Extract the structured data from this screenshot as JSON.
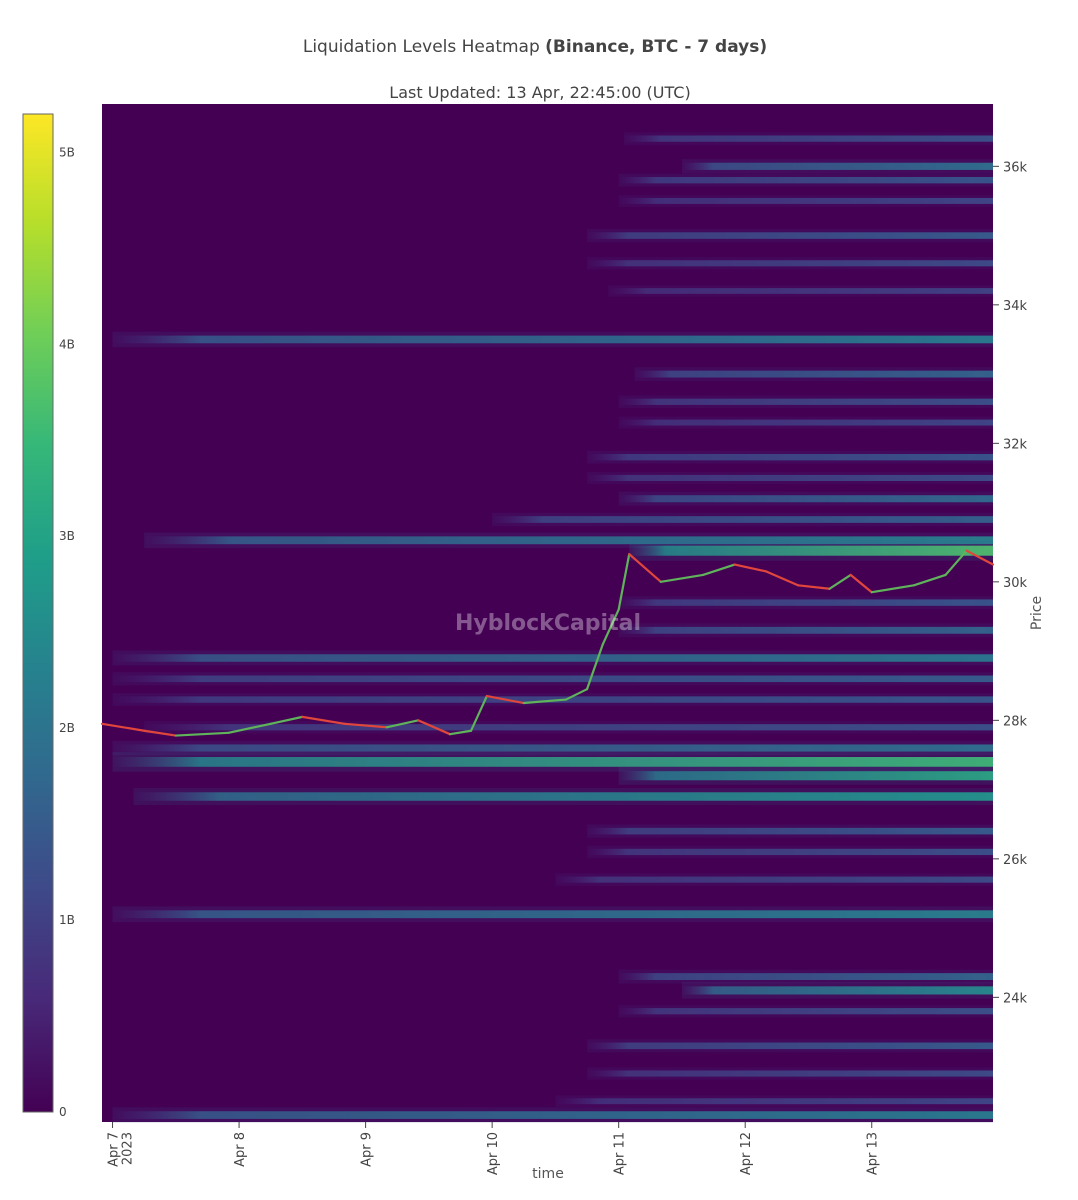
{
  "chart_data": {
    "type": "heatmap",
    "title_main": "Liquidation Levels Heatmap",
    "title_bold": "(Binance, BTC - 7 days)",
    "subtitle": "Last Updated: 13 Apr, 22:45:00 (UTC)",
    "watermark": "HyblockCapital",
    "xlabel": "time",
    "ylabel": "Price",
    "x_range": [
      "2023-04-06T22:00",
      "2023-04-13T23:00"
    ],
    "x_ticks": [
      {
        "date": "2023-04-07",
        "label": "Apr 7",
        "sublabel": "2023"
      },
      {
        "date": "2023-04-08",
        "label": "Apr 8"
      },
      {
        "date": "2023-04-09",
        "label": "Apr 9"
      },
      {
        "date": "2023-04-10",
        "label": "Apr 10"
      },
      {
        "date": "2023-04-11",
        "label": "Apr 11"
      },
      {
        "date": "2023-04-12",
        "label": "Apr 12"
      },
      {
        "date": "2023-04-13",
        "label": "Apr 13"
      }
    ],
    "y_range": [
      22200,
      36900
    ],
    "y_ticks": [
      {
        "value": 24000,
        "label": "24k"
      },
      {
        "value": 26000,
        "label": "26k"
      },
      {
        "value": 28000,
        "label": "28k"
      },
      {
        "value": 30000,
        "label": "30k"
      },
      {
        "value": 32000,
        "label": "32k"
      },
      {
        "value": 34000,
        "label": "34k"
      },
      {
        "value": 36000,
        "label": "36k"
      }
    ],
    "colorscale": [
      "#440154",
      "#482878",
      "#3e4989",
      "#31688e",
      "#26828e",
      "#1f9e89",
      "#35b779",
      "#6ece58",
      "#b5de2b",
      "#fde725"
    ],
    "colorbar_range": [
      0,
      5.2
    ],
    "colorbar_ticks": [
      {
        "value": 0,
        "label": "0"
      },
      {
        "value": 1,
        "label": "1B"
      },
      {
        "value": 2,
        "label": "2B"
      },
      {
        "value": 3,
        "label": "3B"
      },
      {
        "value": 4,
        "label": "4B"
      },
      {
        "value": 5,
        "label": "5B"
      }
    ],
    "liquidation_levels": [
      {
        "price": 36400,
        "start": "2023-04-11T01:00",
        "value": 1.4
      },
      {
        "price": 36000,
        "start": "2023-04-11T12:00",
        "value": 2.0
      },
      {
        "price": 35800,
        "start": "2023-04-11T00:00",
        "value": 1.5
      },
      {
        "price": 35500,
        "start": "2023-04-11T00:00",
        "value": 1.2
      },
      {
        "price": 35000,
        "start": "2023-04-10T18:00",
        "value": 1.6
      },
      {
        "price": 34600,
        "start": "2023-04-10T18:00",
        "value": 1.3
      },
      {
        "price": 34200,
        "start": "2023-04-10T22:00",
        "value": 1.1
      },
      {
        "price": 33500,
        "start": "2023-04-07T00:00",
        "value": 2.3
      },
      {
        "price": 33000,
        "start": "2023-04-11T03:00",
        "value": 1.8
      },
      {
        "price": 32600,
        "start": "2023-04-11T00:00",
        "value": 1.4
      },
      {
        "price": 32300,
        "start": "2023-04-11T00:00",
        "value": 1.2
      },
      {
        "price": 31800,
        "start": "2023-04-10T18:00",
        "value": 1.5
      },
      {
        "price": 31500,
        "start": "2023-04-10T18:00",
        "value": 1.3
      },
      {
        "price": 31200,
        "start": "2023-04-11T00:00",
        "value": 1.9
      },
      {
        "price": 30900,
        "start": "2023-04-10T00:00",
        "value": 1.7
      },
      {
        "price": 30600,
        "start": "2023-04-07T06:00",
        "value": 2.4
      },
      {
        "price": 30450,
        "start": "2023-04-11T02:00",
        "value": 3.8
      },
      {
        "price": 29700,
        "start": "2023-04-11T00:00",
        "value": 1.5
      },
      {
        "price": 29300,
        "start": "2023-04-11T00:00",
        "value": 1.8
      },
      {
        "price": 28900,
        "start": "2023-04-07T00:00",
        "value": 2.2
      },
      {
        "price": 28600,
        "start": "2023-04-07T00:00",
        "value": 1.6
      },
      {
        "price": 28300,
        "start": "2023-04-07T00:00",
        "value": 1.5
      },
      {
        "price": 27900,
        "start": "2023-04-07T06:00",
        "value": 1.4
      },
      {
        "price": 27600,
        "start": "2023-04-07T00:00",
        "value": 2.0
      },
      {
        "price": 27400,
        "start": "2023-04-07T00:00",
        "value": 3.6
      },
      {
        "price": 27200,
        "start": "2023-04-11T00:00",
        "value": 3.2
      },
      {
        "price": 26900,
        "start": "2023-04-07T04:00",
        "value": 2.8
      },
      {
        "price": 26400,
        "start": "2023-04-10T18:00",
        "value": 1.6
      },
      {
        "price": 26100,
        "start": "2023-04-10T18:00",
        "value": 1.4
      },
      {
        "price": 25700,
        "start": "2023-04-10T12:00",
        "value": 1.3
      },
      {
        "price": 25200,
        "start": "2023-04-07T00:00",
        "value": 2.4
      },
      {
        "price": 24300,
        "start": "2023-04-11T00:00",
        "value": 1.8
      },
      {
        "price": 24100,
        "start": "2023-04-11T12:00",
        "value": 2.6
      },
      {
        "price": 23800,
        "start": "2023-04-11T00:00",
        "value": 1.4
      },
      {
        "price": 23300,
        "start": "2023-04-10T18:00",
        "value": 1.6
      },
      {
        "price": 22900,
        "start": "2023-04-10T18:00",
        "value": 1.3
      },
      {
        "price": 22500,
        "start": "2023-04-10T12:00",
        "value": 1.2
      },
      {
        "price": 22300,
        "start": "2023-04-07T00:00",
        "value": 2.3
      }
    ],
    "price_series": [
      {
        "t": "2023-04-06T22:00",
        "p": 27950
      },
      {
        "t": "2023-04-07T06:00",
        "p": 27850
      },
      {
        "t": "2023-04-07T12:00",
        "p": 27780
      },
      {
        "t": "2023-04-07T22:00",
        "p": 27820
      },
      {
        "t": "2023-04-08T06:00",
        "p": 27950
      },
      {
        "t": "2023-04-08T12:00",
        "p": 28050
      },
      {
        "t": "2023-04-08T20:00",
        "p": 27950
      },
      {
        "t": "2023-04-09T04:00",
        "p": 27900
      },
      {
        "t": "2023-04-09T10:00",
        "p": 28000
      },
      {
        "t": "2023-04-09T16:00",
        "p": 27800
      },
      {
        "t": "2023-04-09T20:00",
        "p": 27850
      },
      {
        "t": "2023-04-09T23:00",
        "p": 28350
      },
      {
        "t": "2023-04-10T06:00",
        "p": 28250
      },
      {
        "t": "2023-04-10T14:00",
        "p": 28300
      },
      {
        "t": "2023-04-10T18:00",
        "p": 28450
      },
      {
        "t": "2023-04-10T21:00",
        "p": 29100
      },
      {
        "t": "2023-04-11T00:00",
        "p": 29600
      },
      {
        "t": "2023-04-11T02:00",
        "p": 30400
      },
      {
        "t": "2023-04-11T08:00",
        "p": 30000
      },
      {
        "t": "2023-04-11T16:00",
        "p": 30100
      },
      {
        "t": "2023-04-11T22:00",
        "p": 30250
      },
      {
        "t": "2023-04-12T04:00",
        "p": 30150
      },
      {
        "t": "2023-04-12T10:00",
        "p": 29950
      },
      {
        "t": "2023-04-12T16:00",
        "p": 29900
      },
      {
        "t": "2023-04-12T20:00",
        "p": 30100
      },
      {
        "t": "2023-04-13T00:00",
        "p": 29850
      },
      {
        "t": "2023-04-13T08:00",
        "p": 29950
      },
      {
        "t": "2023-04-13T14:00",
        "p": 30100
      },
      {
        "t": "2023-04-13T18:00",
        "p": 30450
      },
      {
        "t": "2023-04-13T23:00",
        "p": 30250
      }
    ]
  },
  "colors": {
    "background_dark": "#440154",
    "price_up": "#5fb35a",
    "price_down": "#e0463c"
  }
}
